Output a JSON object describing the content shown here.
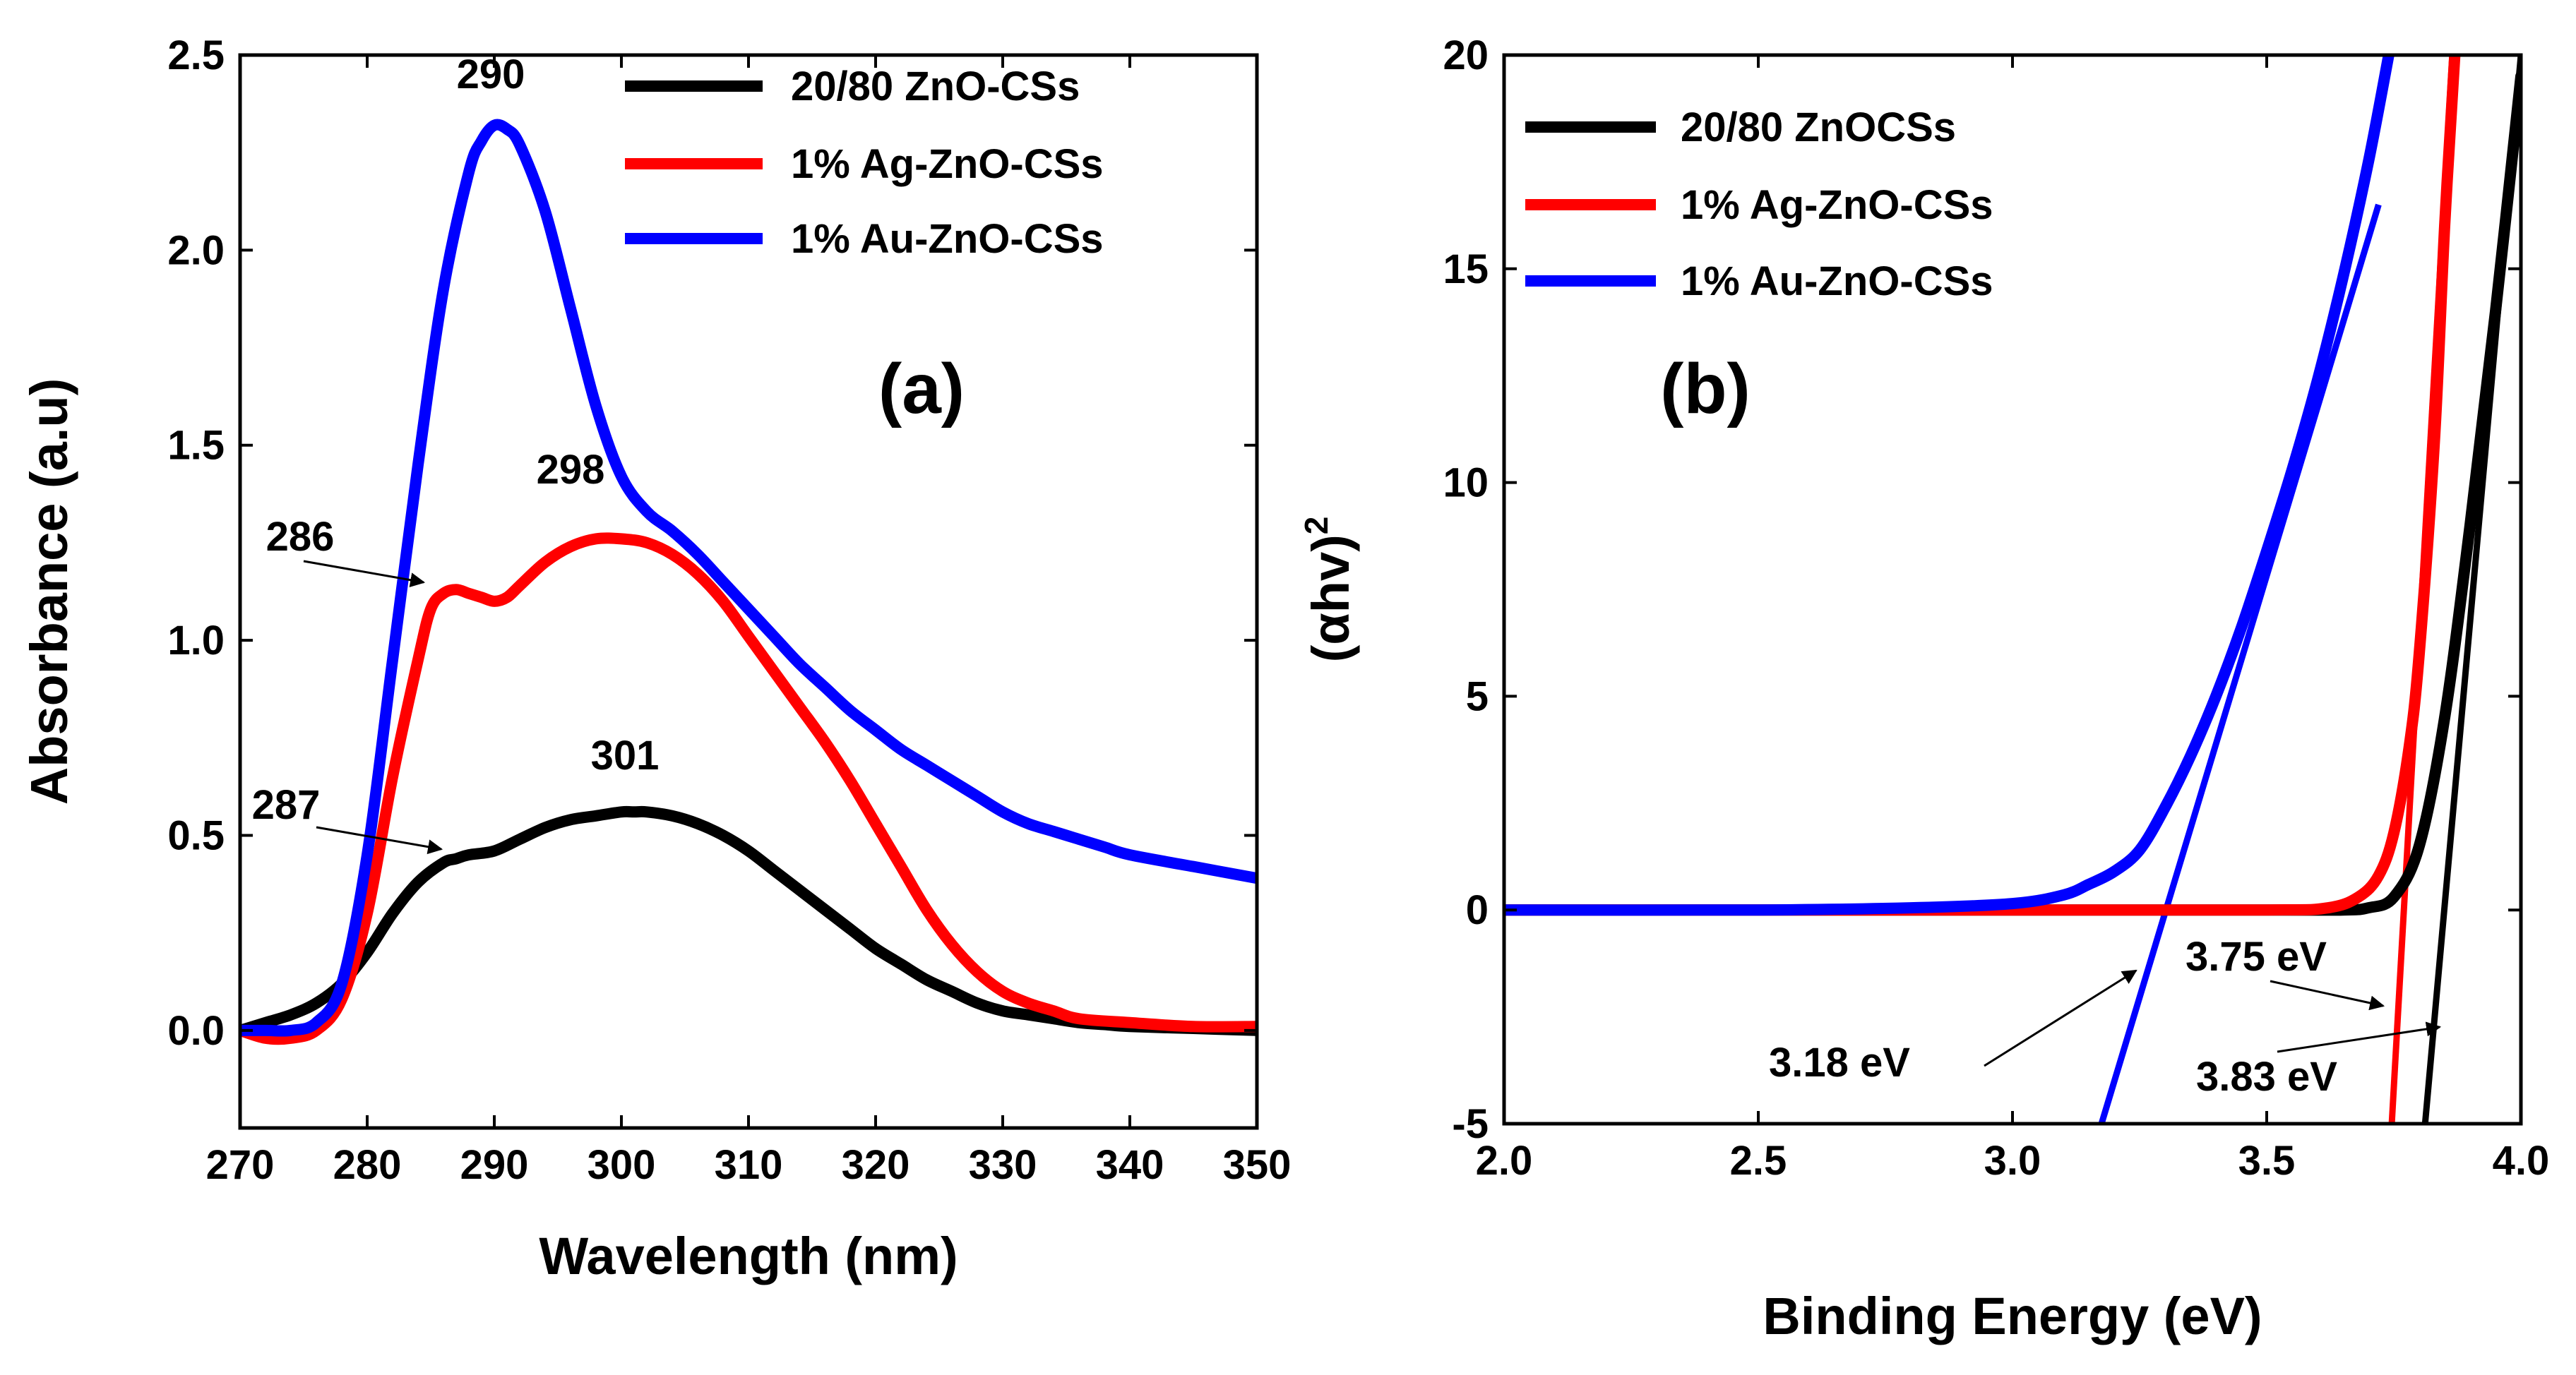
{
  "chart_data": [
    {
      "type": "line",
      "panel_label": "(a)",
      "xlabel": "Wavelength (nm)",
      "ylabel": "Absorbance (a.u)",
      "xlim": [
        270,
        350
      ],
      "ylim": [
        -0.25,
        2.5
      ],
      "xticks": [
        "270",
        "280",
        "290",
        "300",
        "310",
        "320",
        "330",
        "340",
        "350"
      ],
      "yticks": [
        "0.0",
        "0.5",
        "1.0",
        "1.5",
        "2.0",
        "2.5"
      ],
      "legend_position": "top-right",
      "series": [
        {
          "name": "20/80 ZnO-CSs",
          "color": "#000000",
          "x": [
            270,
            272,
            274,
            276,
            278,
            280,
            282,
            284,
            286,
            287,
            288,
            290,
            292,
            294,
            296,
            298,
            300,
            301,
            302,
            304,
            306,
            308,
            310,
            312,
            314,
            316,
            318,
            320,
            322,
            324,
            326,
            328,
            330,
            332,
            334,
            336,
            338,
            340,
            345,
            350
          ],
          "y": [
            0.0,
            0.02,
            0.04,
            0.07,
            0.12,
            0.2,
            0.3,
            0.38,
            0.43,
            0.44,
            0.45,
            0.46,
            0.49,
            0.52,
            0.54,
            0.55,
            0.56,
            0.56,
            0.56,
            0.55,
            0.53,
            0.5,
            0.46,
            0.41,
            0.36,
            0.31,
            0.26,
            0.21,
            0.17,
            0.13,
            0.1,
            0.07,
            0.05,
            0.04,
            0.03,
            0.02,
            0.015,
            0.01,
            0.005,
            0.0
          ]
        },
        {
          "name": "1% Ag-ZnO-CSs",
          "color": "#ff0000",
          "x": [
            270,
            272,
            274,
            276,
            278,
            280,
            282,
            284,
            285,
            286,
            287,
            288,
            289,
            290,
            291,
            292,
            294,
            296,
            298,
            300,
            302,
            304,
            306,
            308,
            310,
            312,
            314,
            316,
            318,
            320,
            322,
            324,
            326,
            328,
            330,
            332,
            334,
            336,
            340,
            345,
            350
          ],
          "y": [
            0.0,
            -0.02,
            -0.02,
            0.0,
            0.08,
            0.3,
            0.65,
            0.95,
            1.08,
            1.12,
            1.13,
            1.12,
            1.11,
            1.1,
            1.11,
            1.14,
            1.2,
            1.24,
            1.26,
            1.26,
            1.25,
            1.22,
            1.17,
            1.1,
            1.01,
            0.92,
            0.83,
            0.74,
            0.64,
            0.53,
            0.42,
            0.31,
            0.22,
            0.15,
            0.1,
            0.07,
            0.05,
            0.03,
            0.02,
            0.01,
            0.01
          ]
        },
        {
          "name": "1% Au-ZnO-CSs",
          "color": "#0000ff",
          "x": [
            270,
            272,
            274,
            276,
            278,
            280,
            282,
            284,
            286,
            288,
            289,
            290,
            291,
            292,
            294,
            296,
            298,
            300,
            302,
            304,
            306,
            308,
            310,
            312,
            314,
            316,
            318,
            320,
            322,
            324,
            326,
            328,
            330,
            332,
            334,
            336,
            338,
            340,
            345,
            350
          ],
          "y": [
            0.0,
            0.0,
            0.0,
            0.02,
            0.12,
            0.45,
            0.95,
            1.45,
            1.9,
            2.2,
            2.28,
            2.32,
            2.31,
            2.27,
            2.1,
            1.85,
            1.6,
            1.42,
            1.33,
            1.28,
            1.22,
            1.15,
            1.08,
            1.01,
            0.94,
            0.88,
            0.82,
            0.77,
            0.72,
            0.68,
            0.64,
            0.6,
            0.56,
            0.53,
            0.51,
            0.49,
            0.47,
            0.45,
            0.42,
            0.39
          ]
        }
      ],
      "annotations": [
        {
          "text": "290",
          "x": 290,
          "y": 2.32
        },
        {
          "text": "298",
          "x": 298,
          "y": 1.26
        },
        {
          "text": "286",
          "x": 286,
          "y": 1.12,
          "arrow": true
        },
        {
          "text": "301",
          "x": 301,
          "y": 0.56
        },
        {
          "text": "287",
          "x": 287,
          "y": 0.44,
          "arrow": true
        }
      ]
    },
    {
      "type": "line",
      "panel_label": "(b)",
      "xlabel": "Binding Energy (eV)",
      "ylabel": "(αhv)",
      "ylabel_superscript": "2",
      "xlim": [
        2.0,
        4.0
      ],
      "ylim": [
        -5,
        20
      ],
      "xticks": [
        "2.0",
        "2.5",
        "3.0",
        "3.5",
        "4.0"
      ],
      "yticks": [
        "-5",
        "0",
        "5",
        "10",
        "15",
        "20"
      ],
      "legend_position": "top-left",
      "series": [
        {
          "name": "20/80 ZnOCSs",
          "color": "#000000",
          "x": [
            2.0,
            2.5,
            3.0,
            3.5,
            3.65,
            3.7,
            3.75,
            3.8,
            3.85,
            3.9,
            3.95,
            4.0
          ],
          "y": [
            0.0,
            0.0,
            0.0,
            0.0,
            0.0,
            0.05,
            0.3,
            1.5,
            4.5,
            9.0,
            14.0,
            19.5
          ]
        },
        {
          "name": "1% Ag-ZnO-CSs",
          "color": "#ff0000",
          "x": [
            2.0,
            2.5,
            3.0,
            3.5,
            3.62,
            3.68,
            3.72,
            3.75,
            3.78,
            3.8,
            3.83,
            3.85,
            3.87
          ],
          "y": [
            0.0,
            0.0,
            0.0,
            0.0,
            0.05,
            0.3,
            0.8,
            1.8,
            3.8,
            6.0,
            11.0,
            16.0,
            20.0
          ]
        },
        {
          "name": "1% Au-ZnO-CSs",
          "color": "#0000ff",
          "x": [
            2.0,
            2.5,
            2.8,
            3.0,
            3.1,
            3.15,
            3.2,
            3.25,
            3.3,
            3.35,
            3.4,
            3.45,
            3.5,
            3.55,
            3.6,
            3.65,
            3.7,
            3.74
          ],
          "y": [
            0.0,
            0.0,
            0.05,
            0.15,
            0.35,
            0.6,
            0.9,
            1.4,
            2.4,
            3.6,
            5.0,
            6.6,
            8.4,
            10.3,
            12.4,
            14.8,
            17.5,
            20.0
          ]
        }
      ],
      "fit_lines": [
        {
          "color": "#0000ff",
          "x": [
            3.17,
            3.72
          ],
          "y": [
            -5.2,
            16.5
          ]
        },
        {
          "color": "#ff0000",
          "x": [
            3.745,
            3.865
          ],
          "y": [
            -5.2,
            20.0
          ]
        },
        {
          "color": "#000000",
          "x": [
            3.81,
            4.0
          ],
          "y": [
            -5.2,
            20.0
          ]
        }
      ],
      "annotations": [
        {
          "text": "3.75 eV",
          "x": 3.75
        },
        {
          "text": "3.18 eV",
          "x": 3.18
        },
        {
          "text": "3.83 eV",
          "x": 3.83
        }
      ]
    }
  ]
}
